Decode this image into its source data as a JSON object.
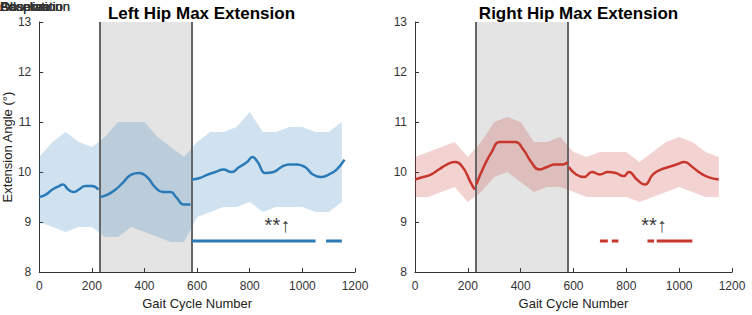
{
  "chart_data": [
    {
      "type": "line",
      "title": "Left Hip Max Extension",
      "x_label": "Gait Cycle Number",
      "y_label": "Extension Angle (°)",
      "xlim": [
        0,
        1200
      ],
      "xticks": [
        0,
        200,
        400,
        600,
        800,
        1000,
        1200
      ],
      "ylim": [
        8,
        13
      ],
      "yticks": [
        8,
        9,
        10,
        11,
        12,
        13
      ],
      "color": "#2a7ab8",
      "x": [
        0,
        25,
        50,
        75,
        90,
        110,
        130,
        150,
        175,
        200,
        225,
        228,
        230,
        260,
        290,
        320,
        350,
        380,
        410,
        440,
        470,
        500,
        520,
        550,
        575,
        578,
        580,
        610,
        640,
        670,
        700,
        730,
        760,
        790,
        810,
        830,
        860,
        890,
        920,
        950,
        980,
        1010,
        1040,
        1070,
        1100,
        1130,
        1160
      ],
      "values": [
        9.5,
        9.55,
        9.65,
        9.72,
        9.75,
        9.65,
        9.6,
        9.65,
        9.72,
        9.72,
        9.65,
        null,
        9.5,
        9.55,
        9.65,
        9.8,
        9.95,
        9.98,
        9.9,
        9.7,
        9.6,
        9.6,
        9.5,
        9.35,
        9.35,
        null,
        9.85,
        9.88,
        9.95,
        10.0,
        10.05,
        10.0,
        10.1,
        10.2,
        10.3,
        10.2,
        9.98,
        10.0,
        10.1,
        10.15,
        10.15,
        10.1,
        9.95,
        9.9,
        9.95,
        10.05,
        10.25
      ],
      "raw_range": {
        "x": [
          0,
          50,
          100,
          150,
          200,
          250,
          300,
          350,
          400,
          450,
          500,
          550,
          600,
          650,
          700,
          750,
          800,
          850,
          900,
          950,
          1000,
          1050,
          1100,
          1150
        ],
        "low": [
          9.0,
          8.9,
          8.8,
          8.9,
          8.9,
          8.7,
          8.7,
          8.9,
          8.8,
          8.7,
          8.6,
          8.6,
          9.1,
          9.2,
          9.3,
          9.3,
          9.4,
          9.2,
          9.3,
          9.3,
          9.3,
          9.2,
          9.2,
          9.4
        ],
        "high": [
          10.3,
          10.6,
          10.8,
          10.6,
          10.5,
          10.7,
          11.0,
          11.0,
          11.0,
          10.7,
          10.5,
          10.3,
          10.6,
          10.8,
          10.8,
          10.9,
          11.2,
          10.8,
          10.8,
          10.9,
          10.9,
          10.8,
          10.8,
          11.0
        ]
      },
      "phases": [
        {
          "label": "Baseline",
          "start": 0,
          "end": 230
        },
        {
          "label": "Adaptation",
          "start": 230,
          "end": 580,
          "color": "#e4e4e4"
        },
        {
          "label": "Observation",
          "start": 580,
          "end": 1160
        }
      ],
      "significance_bars": {
        "y": 8.62,
        "segments": [
          [
            580,
            1050
          ],
          [
            1090,
            1150
          ]
        ]
      },
      "annotations": [
        {
          "text": "**↑",
          "x": 905,
          "y": 8.95
        }
      ]
    },
    {
      "type": "line",
      "title": "Right Hip Max Extension",
      "x_label": "Gait Cycle Number",
      "xlim": [
        0,
        1200
      ],
      "xticks": [
        0,
        200,
        400,
        600,
        800,
        1000,
        1200
      ],
      "ylim": [
        8,
        13
      ],
      "yticks": [
        8,
        9,
        10,
        11,
        12,
        13
      ],
      "color": "#c8372d",
      "x": [
        0,
        30,
        60,
        90,
        120,
        150,
        180,
        210,
        226,
        229,
        232,
        260,
        290,
        320,
        350,
        380,
        410,
        440,
        470,
        500,
        530,
        560,
        578,
        580,
        582,
        610,
        640,
        670,
        700,
        730,
        760,
        790,
        810,
        840,
        870,
        900,
        930,
        960,
        990,
        1020,
        1050,
        1080,
        1110,
        1150
      ],
      "values": [
        9.85,
        9.9,
        9.95,
        10.05,
        10.15,
        10.2,
        10.1,
        9.8,
        9.65,
        null,
        9.75,
        10.1,
        10.4,
        10.6,
        10.6,
        10.6,
        10.45,
        10.2,
        10.05,
        10.1,
        10.15,
        10.15,
        10.2,
        null,
        10.1,
        9.95,
        9.9,
        10.0,
        9.95,
        10.0,
        9.98,
        9.92,
        10.0,
        9.85,
        9.75,
        9.95,
        10.05,
        10.1,
        10.15,
        10.2,
        10.1,
        9.98,
        9.9,
        9.85
      ],
      "raw_range": {
        "x": [
          0,
          50,
          100,
          150,
          200,
          250,
          300,
          350,
          400,
          450,
          500,
          550,
          600,
          650,
          700,
          750,
          800,
          850,
          900,
          950,
          1000,
          1050,
          1100,
          1150
        ],
        "low": [
          9.5,
          9.5,
          9.6,
          9.7,
          9.4,
          9.6,
          9.9,
          10.0,
          9.8,
          9.6,
          9.7,
          9.7,
          9.6,
          9.5,
          9.5,
          9.5,
          9.5,
          9.4,
          9.5,
          9.6,
          9.7,
          9.6,
          9.5,
          9.5
        ],
        "high": [
          10.3,
          10.4,
          10.5,
          10.6,
          10.3,
          10.6,
          11.0,
          11.1,
          11.0,
          10.6,
          10.6,
          10.7,
          10.4,
          10.3,
          10.4,
          10.4,
          10.4,
          10.2,
          10.4,
          10.6,
          10.7,
          10.6,
          10.4,
          10.3
        ]
      },
      "phases": [
        {
          "label": "Baseline",
          "start": 0,
          "end": 230
        },
        {
          "label": "Adaptation",
          "start": 230,
          "end": 580,
          "color": "#e4e4e4"
        },
        {
          "label": "Observation",
          "start": 580,
          "end": 1160
        }
      ],
      "significance_bars": {
        "y": 8.62,
        "segments": [
          [
            700,
            730
          ],
          [
            745,
            770
          ],
          [
            880,
            905
          ],
          [
            915,
            1050
          ]
        ]
      },
      "annotations": [
        {
          "text": "**↑",
          "x": 905,
          "y": 8.95
        }
      ]
    }
  ]
}
